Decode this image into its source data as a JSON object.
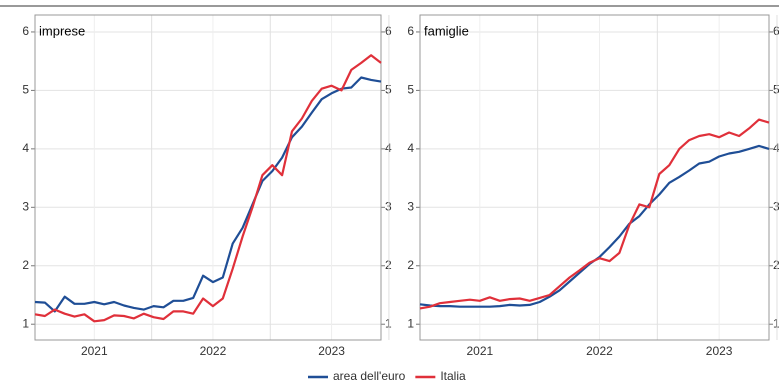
{
  "chart_data": [
    {
      "type": "line",
      "title": "imprese",
      "categories": [
        null,
        null,
        null,
        null,
        null,
        null,
        "2021",
        null,
        null,
        null,
        null,
        null,
        null,
        null,
        null,
        null,
        null,
        null,
        "2022",
        null,
        null,
        null,
        null,
        null,
        null,
        null,
        null,
        null,
        null,
        null,
        "2023",
        null,
        null,
        null,
        null,
        null
      ],
      "series": [
        {
          "name": "area dell'euro",
          "color": "#1f4e96",
          "values": [
            1.38,
            1.37,
            1.22,
            1.47,
            1.35,
            1.35,
            1.38,
            1.34,
            1.38,
            1.32,
            1.28,
            1.25,
            1.31,
            1.29,
            1.4,
            1.4,
            1.45,
            1.83,
            1.72,
            1.8,
            2.38,
            2.65,
            3.05,
            3.45,
            3.62,
            3.85,
            4.2,
            4.38,
            4.62,
            4.85,
            4.95,
            5.03,
            5.05,
            5.22,
            5.18,
            5.15
          ]
        },
        {
          "name": "Italia",
          "color": "#e0303a",
          "values": [
            1.17,
            1.14,
            1.25,
            1.18,
            1.13,
            1.17,
            1.05,
            1.07,
            1.15,
            1.14,
            1.1,
            1.18,
            1.12,
            1.09,
            1.22,
            1.22,
            1.18,
            1.44,
            1.31,
            1.44,
            1.95,
            2.5,
            3.0,
            3.55,
            3.72,
            3.55,
            4.3,
            4.52,
            4.82,
            5.03,
            5.08,
            5.0,
            5.35,
            5.47,
            5.6,
            5.47
          ]
        }
      ],
      "ylim": [
        0.73,
        6.29
      ],
      "yticks": [
        1,
        2,
        3,
        4,
        5,
        6
      ],
      "grid": true
    },
    {
      "type": "line",
      "title": "famiglie",
      "categories": [
        null,
        null,
        null,
        null,
        null,
        null,
        "2021",
        null,
        null,
        null,
        null,
        null,
        null,
        null,
        null,
        null,
        null,
        null,
        "2022",
        null,
        null,
        null,
        null,
        null,
        null,
        null,
        null,
        null,
        null,
        null,
        "2023",
        null,
        null,
        null,
        null,
        null
      ],
      "series": [
        {
          "color": "#1f4e96",
          "values": [
            1.34,
            1.32,
            1.31,
            1.31,
            1.3,
            1.3,
            1.3,
            1.3,
            1.31,
            1.33,
            1.32,
            1.33,
            1.38,
            1.47,
            1.58,
            1.73,
            1.88,
            2.03,
            2.15,
            2.32,
            2.5,
            2.72,
            2.85,
            3.05,
            3.22,
            3.42,
            3.52,
            3.63,
            3.75,
            3.78,
            3.87,
            3.92,
            3.95,
            4.0,
            4.05,
            4.0
          ]
        },
        {
          "color": "#e0303a",
          "values": [
            1.27,
            1.3,
            1.36,
            1.38,
            1.4,
            1.42,
            1.4,
            1.46,
            1.4,
            1.43,
            1.44,
            1.4,
            1.45,
            1.5,
            1.65,
            1.8,
            1.92,
            2.05,
            2.13,
            2.08,
            2.22,
            2.7,
            3.05,
            3.0,
            3.57,
            3.72,
            4.0,
            4.15,
            4.22,
            4.25,
            4.2,
            4.28,
            4.22,
            4.35,
            4.5,
            4.45
          ]
        }
      ],
      "ylim": [
        0.73,
        6.29
      ],
      "yticks": [
        1,
        2,
        3,
        4,
        5,
        6
      ],
      "grid": true
    }
  ]
}
